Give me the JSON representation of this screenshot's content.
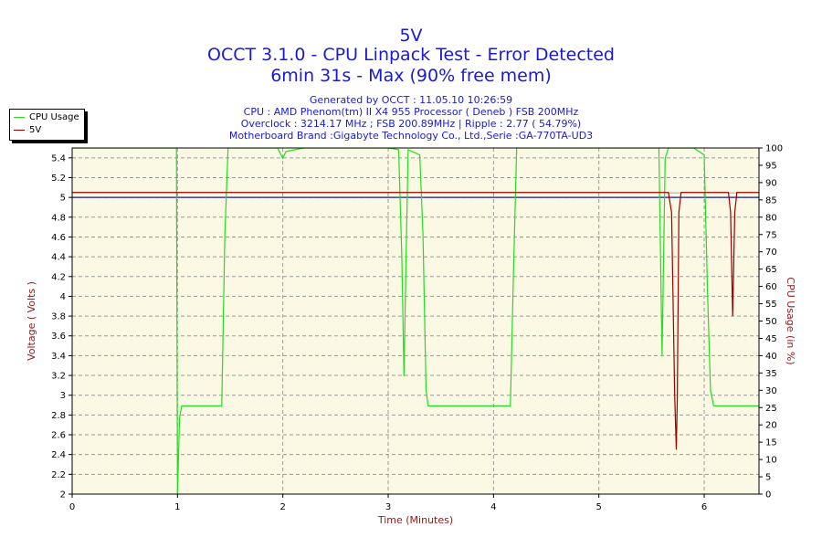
{
  "chart_data": {
    "type": "line",
    "title": "5V",
    "subtitle": "OCCT 3.1.0 - CPU Linpack Test - Error Detected",
    "subtitle2": "6min 31s - Max (90% free mem)",
    "info_lines": [
      "Generated by OCCT : 11.05.10 10:26:59",
      "CPU : AMD Phenom(tm) II X4 955 Processor ( Deneb ) FSB 200MHz",
      "Overclock : 3214.17 MHz ; FSB 200.89MHz | Ripple : 2.77 ( 54.79%)",
      "Motherboard Brand :Gigabyte Technology Co., Ltd.,Serie :GA-770TA-UD3"
    ],
    "xlabel": "Time (Minutes)",
    "ylabel": "Voltage ( Volts )",
    "ylabel2": "CPU Usage (in %)",
    "xlim": [
      0,
      6.52
    ],
    "ylim": [
      2,
      5.5
    ],
    "ylim2": [
      0,
      100
    ],
    "x_ticks": [
      "0",
      "1",
      "2",
      "3",
      "4",
      "5",
      "6"
    ],
    "y_ticks": [
      "2",
      "2.2",
      "2.4",
      "2.6",
      "2.8",
      "3",
      "3.2",
      "3.4",
      "3.6",
      "3.8",
      "4",
      "4.2",
      "4.4",
      "4.6",
      "4.8",
      "5",
      "5.2",
      "5.4"
    ],
    "y2_ticks": [
      "0",
      "5",
      "10",
      "15",
      "20",
      "25",
      "30",
      "35",
      "40",
      "45",
      "50",
      "55",
      "60",
      "65",
      "70",
      "75",
      "80",
      "85",
      "90",
      "95",
      "100"
    ],
    "reference_line": 5.0,
    "grid": true,
    "legend_position": "top-left",
    "series": [
      {
        "name": "CPU Usage",
        "axis": "right",
        "color": "#22dd22",
        "points": [
          [
            0,
            100
          ],
          [
            0.5,
            100
          ],
          [
            0.99,
            100
          ],
          [
            1.0,
            0
          ],
          [
            1.02,
            22
          ],
          [
            1.04,
            25.5
          ],
          [
            1.1,
            25.5
          ],
          [
            1.42,
            25.5
          ],
          [
            1.45,
            75
          ],
          [
            1.48,
            100
          ],
          [
            1.8,
            100
          ],
          [
            1.95,
            100
          ],
          [
            2.0,
            97
          ],
          [
            2.03,
            99
          ],
          [
            2.2,
            100
          ],
          [
            2.6,
            100
          ],
          [
            3.0,
            100
          ],
          [
            3.1,
            99.5
          ],
          [
            3.13,
            68
          ],
          [
            3.15,
            34
          ],
          [
            3.17,
            68
          ],
          [
            3.19,
            99.5
          ],
          [
            3.3,
            98
          ],
          [
            3.33,
            75
          ],
          [
            3.36,
            30
          ],
          [
            3.38,
            25.5
          ],
          [
            3.6,
            25.5
          ],
          [
            4.0,
            25.5
          ],
          [
            4.16,
            25.5
          ],
          [
            4.19,
            65
          ],
          [
            4.22,
            100
          ],
          [
            4.6,
            100
          ],
          [
            5.2,
            100
          ],
          [
            5.55,
            100
          ],
          [
            5.57,
            100
          ],
          [
            5.6,
            40
          ],
          [
            5.63,
            97
          ],
          [
            5.66,
            100
          ],
          [
            5.9,
            100
          ],
          [
            6.0,
            98
          ],
          [
            6.03,
            60
          ],
          [
            6.06,
            30
          ],
          [
            6.09,
            25.5
          ],
          [
            6.3,
            25.5
          ],
          [
            6.52,
            25.5
          ]
        ]
      },
      {
        "name": "5V",
        "axis": "left",
        "color": "#990000",
        "points": [
          [
            0,
            5.05
          ],
          [
            5.6,
            5.05
          ],
          [
            5.66,
            5.05
          ],
          [
            5.69,
            4.85
          ],
          [
            5.72,
            3.0
          ],
          [
            5.735,
            2.45
          ],
          [
            5.745,
            3.0
          ],
          [
            5.76,
            4.85
          ],
          [
            5.78,
            5.05
          ],
          [
            6.23,
            5.05
          ],
          [
            6.25,
            4.85
          ],
          [
            6.27,
            3.8
          ],
          [
            6.29,
            4.85
          ],
          [
            6.31,
            5.05
          ],
          [
            6.52,
            5.05
          ]
        ]
      }
    ]
  }
}
